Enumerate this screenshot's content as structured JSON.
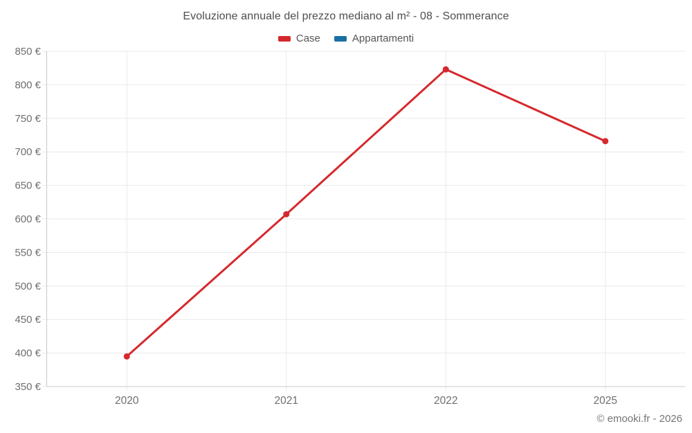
{
  "attribution": "© emooki.fr - 2026",
  "chart_data": {
    "type": "line",
    "title": "Evoluzione annuale del prezzo mediano al m² - 08 - Sommerance",
    "categories": [
      "2020",
      "2021",
      "2022",
      "2025"
    ],
    "series": [
      {
        "name": "Case",
        "color": "#d5292d",
        "values": [
          395,
          607,
          823,
          716
        ]
      },
      {
        "name": "Appartamenti",
        "color": "#1a6fa3",
        "values": []
      }
    ],
    "ylim": [
      350,
      850
    ],
    "ytick_step": 50,
    "ytick_suffix": " €",
    "xlabel": "",
    "ylabel": "",
    "grid": true,
    "legend_position": "top",
    "colors": {
      "grid": "#e9e9e9",
      "axis": "#c9c9c9",
      "tick_text": "#6e6e6e"
    }
  }
}
